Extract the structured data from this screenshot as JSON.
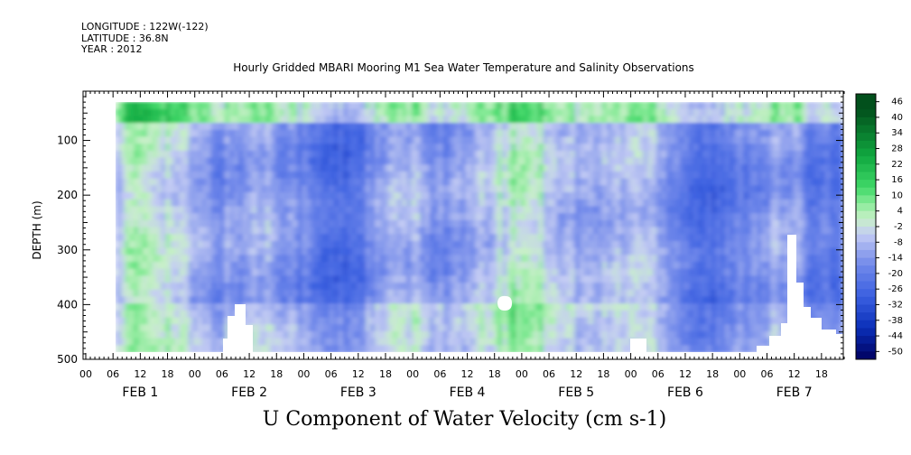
{
  "header": {
    "longitude": "LONGITUDE : 122W(-122)",
    "latitude": "LATITUDE : 36.8N",
    "year": "YEAR : 2012"
  },
  "chart_title": "Hourly Gridded MBARI Mooring M1 Sea Water Temperature and Salinity Observations",
  "variable_title": "U Component of Water Velocity (cm s-1)",
  "chart_data": {
    "type": "heatmap",
    "title": "Hourly Gridded MBARI Mooring M1 Sea Water Temperature and Salinity Observations",
    "xlabel": "",
    "ylabel": "DEPTH (m)",
    "x_tick_labels": [
      "00",
      "06",
      "12",
      "18",
      "00",
      "06",
      "12",
      "18",
      "00",
      "06",
      "12",
      "18",
      "00",
      "06",
      "12",
      "18",
      "00",
      "06",
      "12",
      "18",
      "00",
      "06",
      "12",
      "18",
      "00",
      "06",
      "12",
      "18"
    ],
    "x_day_labels": [
      "FEB  1",
      "FEB  2",
      "FEB  3",
      "FEB  4",
      "FEB  5",
      "FEB  6",
      "FEB  7"
    ],
    "y_ticks": [
      100,
      200,
      300,
      400,
      500
    ],
    "y_tick_labels": [
      "100",
      "200",
      "300",
      "400",
      "500"
    ],
    "ylim": [
      500,
      10
    ],
    "colorbar_labels": [
      "46",
      "40",
      "34",
      "28",
      "22",
      "16",
      "10",
      "4",
      "-2",
      "-8",
      "-14",
      "-20",
      "-26",
      "-32",
      "-38",
      "-44",
      "-50"
    ],
    "colorbar_range": [
      -50,
      52
    ],
    "colors": {
      "strong_negative": "#000080",
      "negative": "#6f86e8",
      "near_zero": "#b8c4f0",
      "positive": "#7fe89a",
      "strong_positive": "#0c7a2a"
    }
  }
}
